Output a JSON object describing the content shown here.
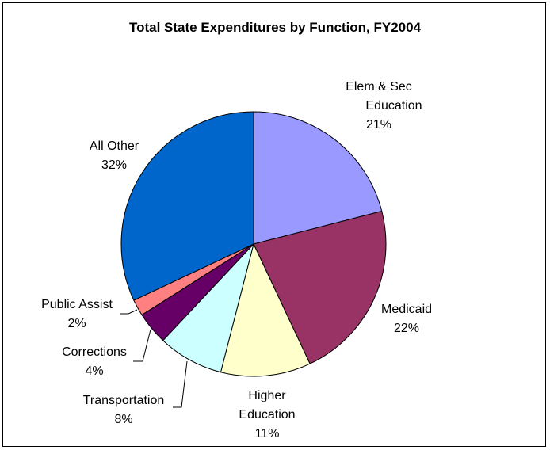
{
  "chart_data": {
    "type": "pie",
    "title": "Total State Expenditures by Function, FY2004",
    "start": "top",
    "direction": "clockwise",
    "slices": [
      {
        "label": [
          "Elem & Sec",
          "Education"
        ],
        "pct_label": "21%",
        "value": 21,
        "color": "#9999FF"
      },
      {
        "label": [
          "Medicaid"
        ],
        "pct_label": "22%",
        "value": 22,
        "color": "#993366"
      },
      {
        "label": [
          "Higher",
          "Education"
        ],
        "pct_label": "11%",
        "value": 11,
        "color": "#FFFFCC"
      },
      {
        "label": [
          "Transportation"
        ],
        "pct_label": "8%",
        "value": 8,
        "color": "#CCFFFF"
      },
      {
        "label": [
          "Corrections"
        ],
        "pct_label": "4%",
        "value": 4,
        "color": "#660066"
      },
      {
        "label": [
          "Public Assist"
        ],
        "pct_label": "2%",
        "value": 2,
        "color": "#FF8080"
      },
      {
        "label": [
          "All Other"
        ],
        "pct_label": "32%",
        "value": 32,
        "color": "#0066CC"
      }
    ]
  }
}
